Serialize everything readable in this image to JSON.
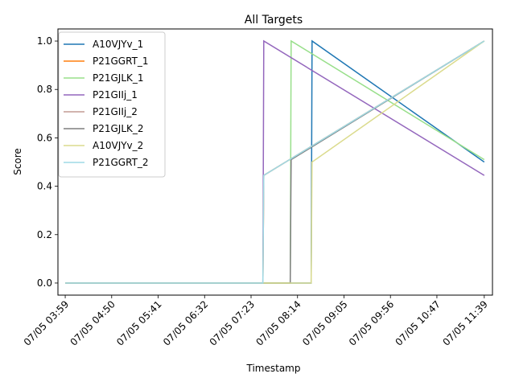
{
  "chart_data": {
    "type": "line",
    "title": "All Targets",
    "xlabel": "Timestamp",
    "ylabel": "Score",
    "x_ticks": [
      "07/05 03:59",
      "07/05 04:50",
      "07/05 05:41",
      "07/05 06:32",
      "07/05 07:23",
      "07/05 08:14",
      "07/05 09:05",
      "07/05 09:56",
      "07/05 10:47",
      "07/05 11:39"
    ],
    "y_ticks": [
      "0.0",
      "0.2",
      "0.4",
      "0.6",
      "0.8",
      "1.0"
    ],
    "xlim": [
      "07/05 03:51",
      "07/05 11:48"
    ],
    "ylim": [
      -0.05,
      1.05
    ],
    "grid": false,
    "legend_position": "top-left",
    "series": [
      {
        "name": "A10VJYv_1",
        "color": "#1f77b4",
        "points": [
          [
            "07/05 03:59",
            0
          ],
          [
            "07/05 08:29",
            0
          ],
          [
            "07/05 08:30",
            1.0
          ],
          [
            "07/05 11:39",
            0.5
          ]
        ]
      },
      {
        "name": "P21GGRT_1",
        "color": "#ff7f0e",
        "points": [
          [
            "07/05 03:59",
            0
          ],
          [
            "07/05 07:36",
            0
          ],
          [
            "07/05 07:37",
            0.445
          ],
          [
            "07/05 11:39",
            1.0
          ]
        ]
      },
      {
        "name": "P21GJLK_1",
        "color": "#98df8a",
        "points": [
          [
            "07/05 03:59",
            0
          ],
          [
            "07/05 08:06",
            0
          ],
          [
            "07/05 08:07",
            1.0
          ],
          [
            "07/05 11:39",
            0.51
          ]
        ]
      },
      {
        "name": "P21GIIj_1",
        "color": "#9467bd",
        "points": [
          [
            "07/05 03:59",
            0
          ],
          [
            "07/05 07:36",
            0
          ],
          [
            "07/05 07:37",
            1.0
          ],
          [
            "07/05 11:39",
            0.445
          ]
        ]
      },
      {
        "name": "P21GIIj_2",
        "color": "#c49c94",
        "points": [
          [
            "07/05 03:59",
            0
          ],
          [
            "07/05 07:36",
            0
          ],
          [
            "07/05 07:37",
            0.445
          ],
          [
            "07/05 11:39",
            1.0
          ]
        ]
      },
      {
        "name": "P21GJLK_2",
        "color": "#7f7f7f",
        "points": [
          [
            "07/05 03:59",
            0
          ],
          [
            "07/05 08:06",
            0
          ],
          [
            "07/05 08:07",
            0.51
          ],
          [
            "07/05 11:39",
            1.0
          ]
        ]
      },
      {
        "name": "A10VJYv_2",
        "color": "#dbdb8d",
        "points": [
          [
            "07/05 03:59",
            0
          ],
          [
            "07/05 08:29",
            0
          ],
          [
            "07/05 08:30",
            0.5
          ],
          [
            "07/05 11:39",
            1.0
          ]
        ]
      },
      {
        "name": "P21GGRT_2",
        "color": "#9edae5",
        "points": [
          [
            "07/05 03:59",
            0
          ],
          [
            "07/05 07:36",
            0
          ],
          [
            "07/05 07:37",
            0.445
          ],
          [
            "07/05 11:39",
            1.0
          ]
        ]
      }
    ]
  }
}
